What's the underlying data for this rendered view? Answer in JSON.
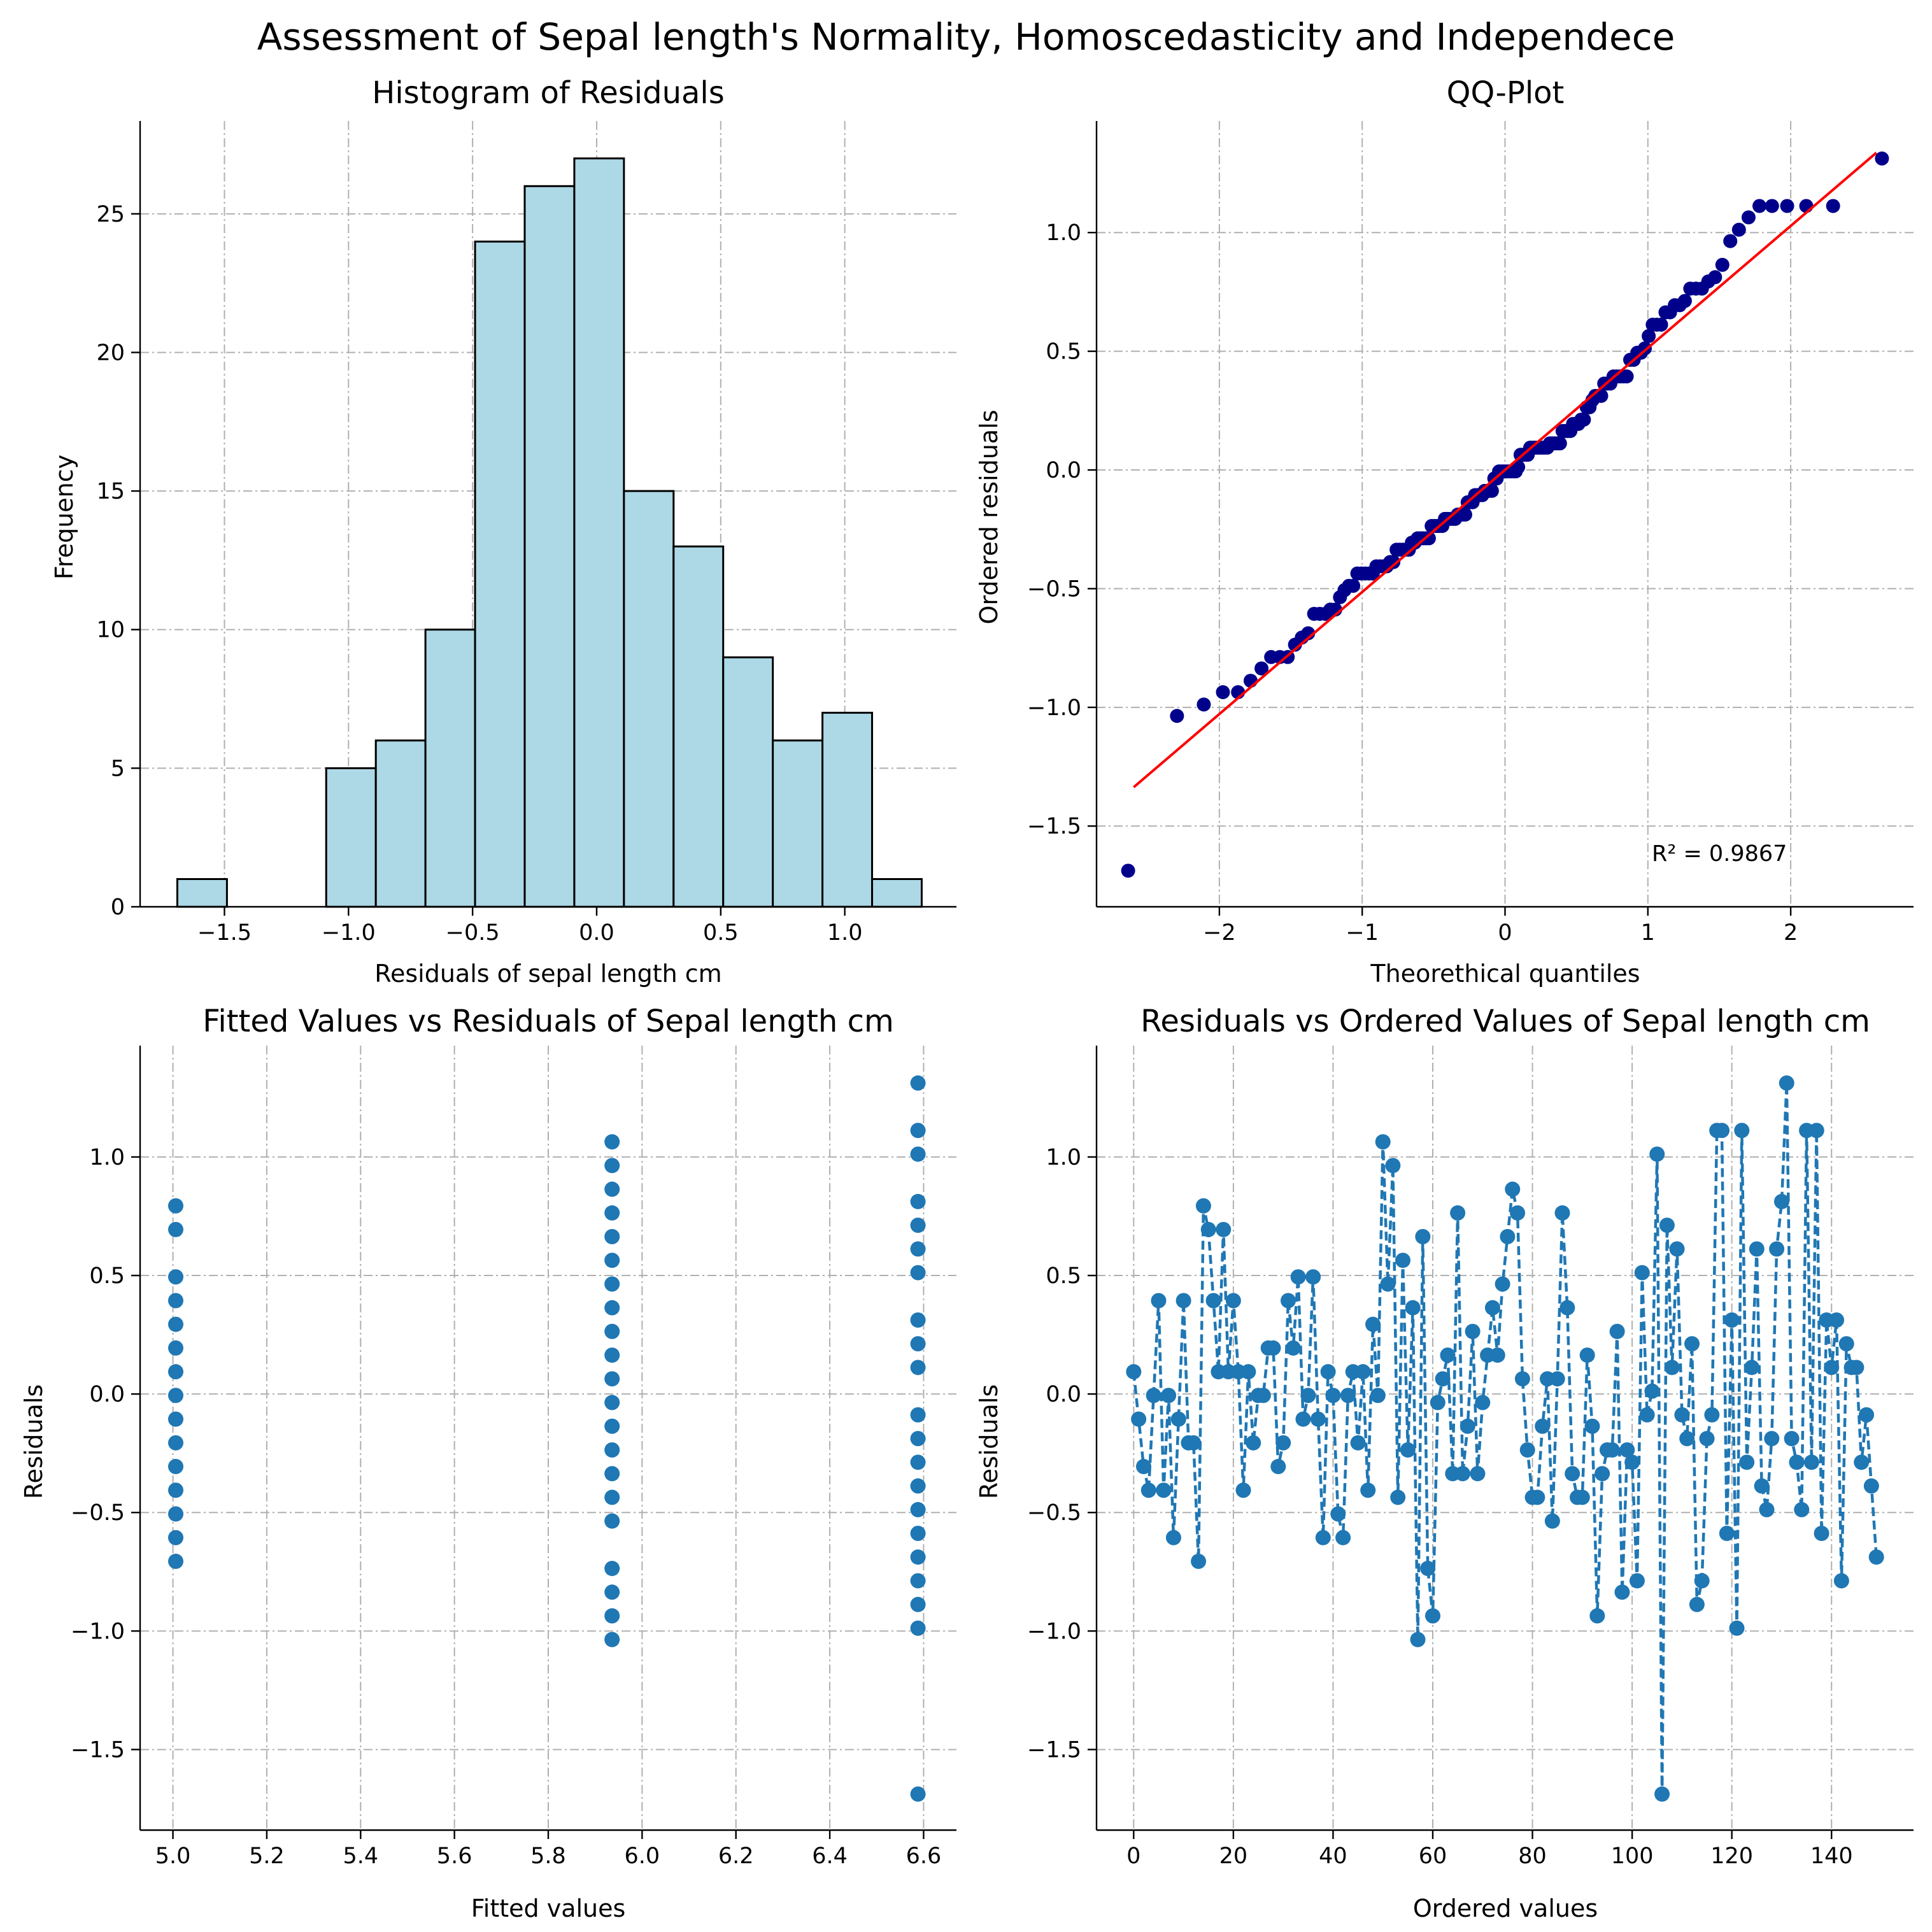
{
  "figure": {
    "suptitle": "Assessment of Sepal length's Normality, Homoscedasticity and Independece"
  },
  "chart_data": [
    {
      "id": "hist",
      "type": "bar",
      "title": "Histogram of Residuals",
      "xlabel": "Residuals of sepal length cm",
      "ylabel": "Frequency",
      "xlim": [
        -1.84,
        1.45
      ],
      "ylim": [
        0,
        28.35
      ],
      "xticks": [
        -1.5,
        -1.0,
        -0.5,
        0.0,
        0.5,
        1.0
      ],
      "xtick_labels": [
        "−1.5",
        "−1.0",
        "−0.5",
        "0.0",
        "0.5",
        "1.0"
      ],
      "yticks": [
        0,
        5,
        10,
        15,
        20,
        25
      ],
      "ytick_labels": [
        "0",
        "5",
        "10",
        "15",
        "20",
        "25"
      ],
      "bin_edges": [
        -1.69,
        -1.49,
        -1.29,
        -1.09,
        -0.89,
        -0.69,
        -0.49,
        -0.29,
        -0.09,
        0.11,
        0.31,
        0.51,
        0.71,
        0.91,
        1.11,
        1.31
      ],
      "values": [
        1,
        0,
        0,
        5,
        6,
        10,
        24,
        26,
        27,
        15,
        13,
        9,
        6,
        7,
        1
      ],
      "bar_color": "#add8e6",
      "edge_color": "#000000",
      "grid": true
    },
    {
      "id": "qq",
      "type": "scatter",
      "title": "QQ-Plot",
      "xlabel": "Theorethical quantiles",
      "ylabel": "Ordered residuals",
      "xlim": [
        -2.86,
        2.86
      ],
      "ylim": [
        -1.84,
        1.47
      ],
      "xticks": [
        -2,
        -1,
        0,
        1,
        2
      ],
      "xtick_labels": [
        "−2",
        "−1",
        "0",
        "1",
        "2"
      ],
      "yticks": [
        -1.5,
        -1.0,
        -0.5,
        0.0,
        0.5,
        1.0
      ],
      "ytick_labels": [
        "−1.5",
        "−1.0",
        "−0.5",
        "0.0",
        "0.5",
        "1.0"
      ],
      "points_source": "normal quantiles of 150 ordered residuals (residuals listed in the ordered-values chart)",
      "line": {
        "slope": 0.514,
        "intercept": 0.0,
        "x_range": [
          -2.6,
          2.6
        ],
        "color": "#ff0000"
      },
      "point_color": "#00008b",
      "annotation": "R² = 0.9867",
      "annotation_position": "bottom-right",
      "grid": true
    },
    {
      "id": "fitted",
      "type": "scatter",
      "title": "Fitted Values vs Residuals of Sepal length cm",
      "xlabel": "Fitted values",
      "ylabel": "Residuals",
      "xlim": [
        4.93,
        6.67
      ],
      "ylim": [
        -1.84,
        1.47
      ],
      "xticks": [
        5.0,
        5.2,
        5.4,
        5.6,
        5.8,
        6.0,
        6.2,
        6.4,
        6.6
      ],
      "xtick_labels": [
        "5.0",
        "5.2",
        "5.4",
        "5.6",
        "5.8",
        "6.0",
        "6.2",
        "6.4",
        "6.6"
      ],
      "yticks": [
        -1.5,
        -1.0,
        -0.5,
        0.0,
        0.5,
        1.0
      ],
      "ytick_labels": [
        "−1.5",
        "−1.0",
        "−0.5",
        "0.0",
        "0.5",
        "1.0"
      ],
      "groups": [
        {
          "fitted": 5.006,
          "residuals": [
            0.794,
            0.694,
            0.494,
            0.394,
            0.294,
            0.194,
            0.094,
            -0.006,
            -0.106,
            -0.206,
            -0.306,
            -0.406,
            -0.506,
            -0.606,
            -0.706
          ]
        },
        {
          "fitted": 5.936,
          "residuals": [
            1.064,
            0.964,
            0.864,
            0.764,
            0.664,
            0.564,
            0.464,
            0.364,
            0.264,
            0.164,
            0.064,
            -0.036,
            -0.136,
            -0.236,
            -0.336,
            -0.436,
            -0.536,
            -0.736,
            -0.836,
            -0.936,
            -1.036
          ]
        },
        {
          "fitted": 6.588,
          "residuals": [
            1.312,
            1.112,
            1.012,
            0.812,
            0.712,
            0.612,
            0.512,
            0.312,
            0.212,
            0.112,
            -0.088,
            -0.188,
            -0.288,
            -0.388,
            -0.488,
            -0.588,
            -0.688,
            -0.788,
            -0.888,
            -0.988,
            -1.688
          ]
        }
      ],
      "point_color": "#1f77b4",
      "grid": true
    },
    {
      "id": "ordered",
      "type": "line",
      "title": "Residuals vs Ordered Values of Sepal length cm",
      "xlabel": "Ordered values",
      "ylabel": "Residuals",
      "xlim": [
        -7.45,
        156.45
      ],
      "ylim": [
        -1.84,
        1.47
      ],
      "xticks": [
        0,
        20,
        40,
        60,
        80,
        100,
        120,
        140
      ],
      "xtick_labels": [
        "0",
        "20",
        "40",
        "60",
        "80",
        "100",
        "120",
        "140"
      ],
      "yticks": [
        -1.5,
        -1.0,
        -0.5,
        0.0,
        0.5,
        1.0
      ],
      "ytick_labels": [
        "−1.5",
        "−1.0",
        "−0.5",
        "0.0",
        "0.5",
        "1.0"
      ],
      "values": [
        0.094,
        -0.106,
        -0.306,
        -0.406,
        -0.006,
        0.394,
        -0.406,
        -0.006,
        -0.606,
        -0.106,
        0.394,
        -0.206,
        -0.206,
        -0.706,
        0.794,
        0.694,
        0.394,
        0.094,
        0.694,
        0.094,
        0.394,
        0.094,
        -0.406,
        0.094,
        -0.206,
        -0.006,
        -0.006,
        0.194,
        0.194,
        -0.306,
        -0.206,
        0.394,
        0.194,
        0.494,
        -0.106,
        -0.006,
        0.494,
        -0.106,
        -0.606,
        0.094,
        -0.006,
        -0.506,
        -0.606,
        -0.006,
        0.094,
        -0.206,
        0.094,
        -0.406,
        0.294,
        -0.006,
        1.064,
        0.464,
        0.964,
        -0.436,
        0.564,
        -0.236,
        0.364,
        -1.036,
        0.664,
        -0.736,
        -0.936,
        -0.036,
        0.064,
        0.164,
        -0.336,
        0.764,
        -0.336,
        -0.136,
        0.264,
        -0.336,
        -0.036,
        0.164,
        0.364,
        0.164,
        0.464,
        0.664,
        0.864,
        0.764,
        0.064,
        -0.236,
        -0.436,
        -0.436,
        -0.136,
        0.064,
        -0.536,
        0.064,
        0.764,
        0.364,
        -0.336,
        -0.436,
        -0.436,
        0.164,
        -0.136,
        -0.936,
        -0.336,
        -0.236,
        -0.236,
        0.264,
        -0.836,
        -0.236,
        -0.288,
        -0.788,
        0.512,
        -0.088,
        0.012,
        1.012,
        -1.688,
        0.712,
        0.112,
        0.612,
        -0.088,
        -0.188,
        0.212,
        -0.888,
        -0.788,
        -0.188,
        -0.088,
        1.112,
        1.112,
        -0.588,
        0.312,
        -0.988,
        1.112,
        -0.288,
        0.112,
        0.612,
        -0.388,
        -0.488,
        -0.188,
        0.612,
        0.812,
        1.312,
        -0.188,
        -0.288,
        -0.488,
        1.112,
        -0.288,
        1.112,
        -0.588,
        0.312,
        0.112,
        0.312,
        -0.788,
        0.212,
        0.112,
        0.112,
        -0.288,
        -0.088,
        -0.388,
        -0.688
      ],
      "line_style": "dashed",
      "marker": "circle",
      "color": "#1f77b4",
      "grid": true
    }
  ]
}
